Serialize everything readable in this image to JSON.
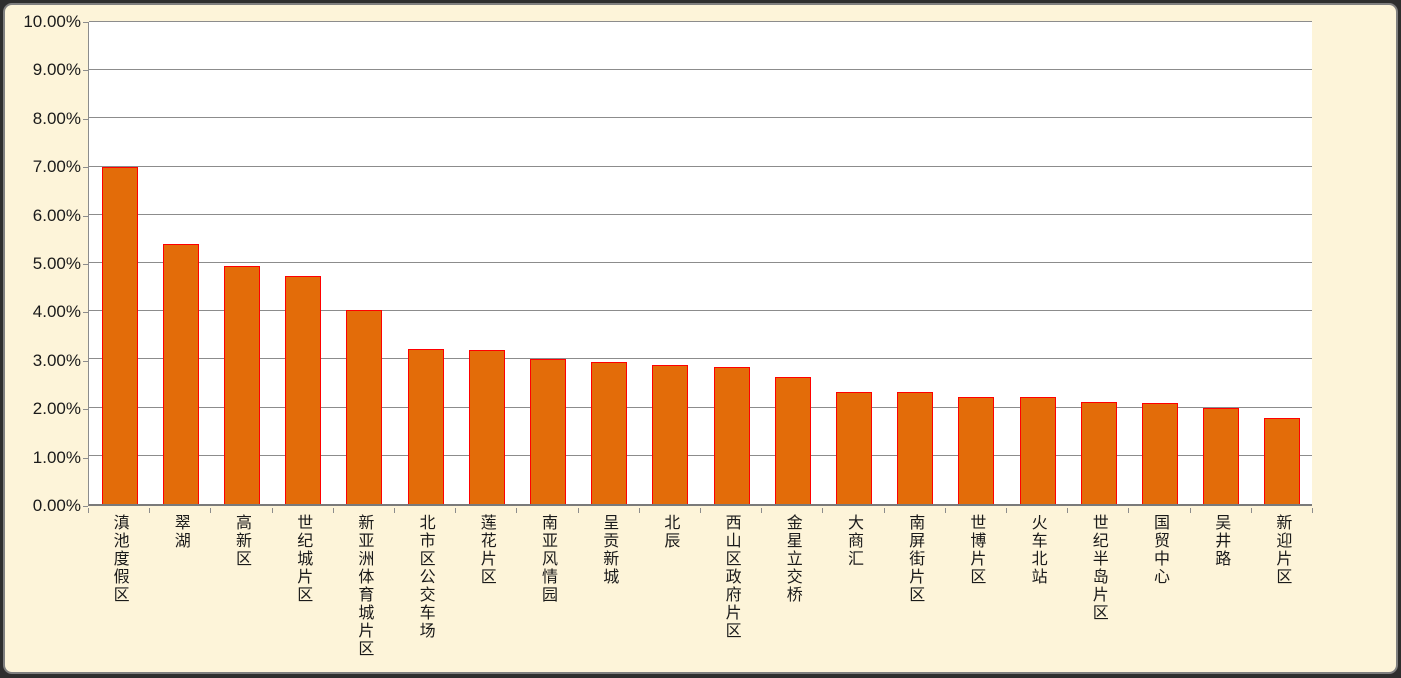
{
  "window": {
    "background_color": "#fdf4d9",
    "outer_border_color": "#2e2e2e",
    "frame_border_color": "#7f7f7f"
  },
  "chart_data": {
    "type": "bar",
    "title": "",
    "xlabel": "",
    "ylabel": "",
    "categories": [
      "滇池度假区",
      "翠湖",
      "高新区",
      "世纪城片区",
      "新亚洲体育城片区",
      "北市区公交车场",
      "莲花片区",
      "南亚风情园",
      "呈贡新城",
      "北辰",
      "西山区政府片区",
      "金星立交桥",
      "大商汇",
      "南屏街片区",
      "世博片区",
      "火车北站",
      "世纪半岛片区",
      "国贸中心",
      "吴井路",
      "新迎片区"
    ],
    "values": [
      7.0,
      5.4,
      4.93,
      4.74,
      4.02,
      3.22,
      3.2,
      3.0,
      2.95,
      2.88,
      2.84,
      2.64,
      2.32,
      2.32,
      2.23,
      2.21,
      2.12,
      2.1,
      2.0,
      1.78
    ],
    "value_unit": "percent",
    "ylim": [
      0,
      10
    ],
    "ytick_step": 1,
    "ytick_labels": [
      "0.00%",
      "1.00%",
      "2.00%",
      "3.00%",
      "4.00%",
      "5.00%",
      "6.00%",
      "7.00%",
      "8.00%",
      "9.00%",
      "10.00%"
    ],
    "grid": true,
    "legend": "none",
    "colors": {
      "bar_fill": "#e36c09",
      "bar_border": "#ff0000",
      "plot_background": "#ffffff",
      "gridline": "#8c8c8c",
      "axis": "#7a7a7a",
      "tick_label": "#1a1a1a"
    }
  }
}
